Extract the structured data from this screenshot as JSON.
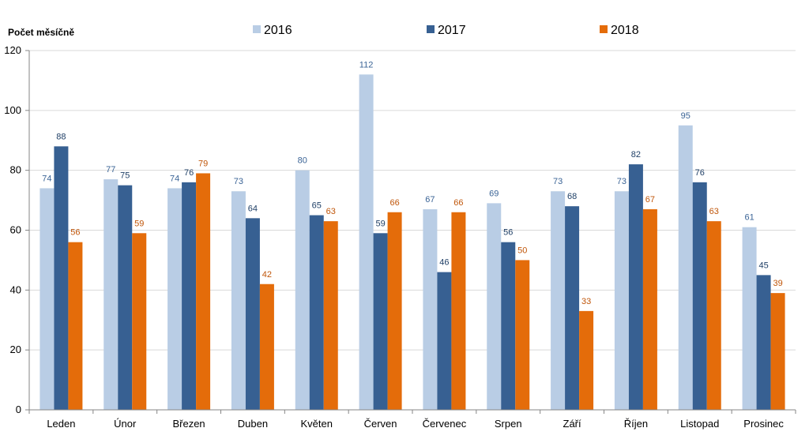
{
  "chart_data": {
    "type": "bar",
    "ylabel": "Počet měsíčně",
    "ylim": [
      0,
      120
    ],
    "yticks": [
      0,
      20,
      40,
      60,
      80,
      100,
      120
    ],
    "grid": true,
    "legend_position": "top",
    "categories": [
      "Leden",
      "Únor",
      "Březen",
      "Duben",
      "Květen",
      "Červen",
      "Červenec",
      "Srpen",
      "Září",
      "Říjen",
      "Listopad",
      "Prosinec"
    ],
    "series": [
      {
        "name": "2016",
        "color": "#b9cde5",
        "label_color": "#3b6496",
        "values": [
          74,
          77,
          74,
          73,
          80,
          112,
          67,
          69,
          73,
          73,
          95,
          61
        ]
      },
      {
        "name": "2017",
        "color": "#376092",
        "label_color": "#1f3f66",
        "values": [
          88,
          75,
          76,
          64,
          65,
          59,
          46,
          56,
          68,
          82,
          76,
          45
        ]
      },
      {
        "name": "2018",
        "color": "#e46c0a",
        "label_color": "#c0560a",
        "values": [
          56,
          59,
          79,
          42,
          63,
          66,
          66,
          50,
          33,
          67,
          63,
          39
        ]
      }
    ]
  }
}
